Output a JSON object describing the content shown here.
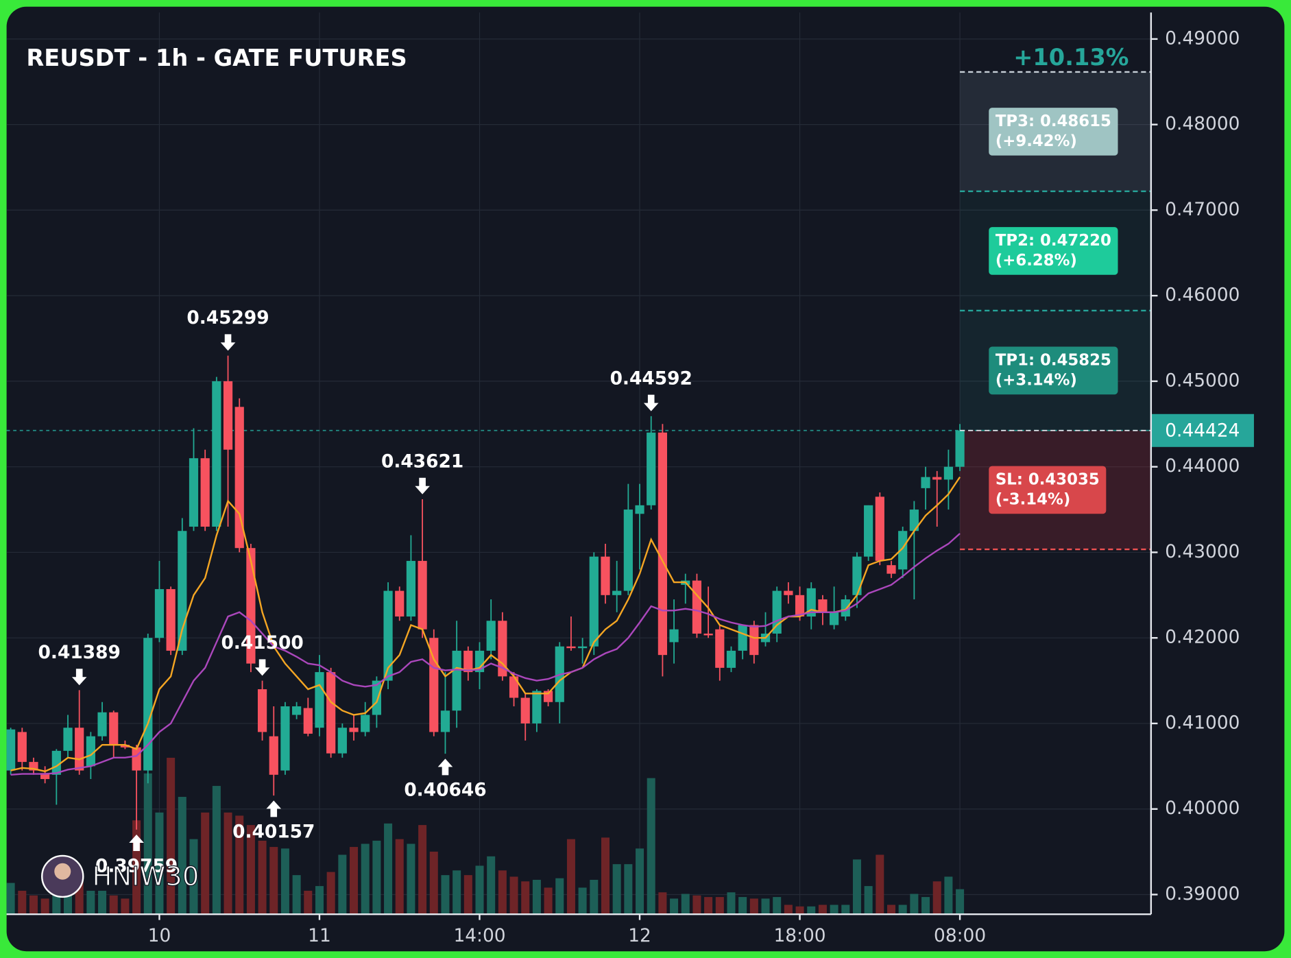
{
  "chart_data": {
    "type": "candlestick",
    "title": "REUSDT - 1h - GATE FUTURES",
    "watermark": "HNIW30",
    "categories": [
      null,
      null,
      null,
      null,
      null,
      null,
      null,
      null,
      null,
      null,
      null,
      null,
      null,
      "10",
      null,
      null,
      null,
      null,
      null,
      null,
      null,
      null,
      null,
      null,
      null,
      null,
      null,
      "11",
      null,
      null,
      null,
      null,
      null,
      null,
      null,
      null,
      null,
      null,
      null,
      null,
      null,
      "14:00",
      null,
      null,
      null,
      null,
      null,
      null,
      null,
      null,
      null,
      null,
      null,
      null,
      null,
      "12",
      null,
      null,
      null,
      null,
      null,
      null,
      null,
      null,
      null,
      null,
      null,
      null,
      null,
      "18:00",
      null,
      null,
      null,
      null,
      null,
      null,
      null,
      null,
      null,
      null,
      null,
      null,
      null,
      "08:00"
    ],
    "open": [
      0.4045,
      0.409,
      0.4055,
      0.4042,
      0.404,
      0.4068,
      0.4095,
      0.405,
      0.4085,
      0.4113,
      0.4075,
      0.4072,
      0.4045,
      0.42,
      0.4257,
      0.4185,
      0.433,
      0.441,
      0.433,
      0.45,
      0.447,
      0.4305,
      0.414,
      0.4085,
      0.4045,
      0.411,
      0.4118,
      0.4095,
      0.416,
      0.4065,
      0.4095,
      0.409,
      0.411,
      0.415,
      0.4255,
      0.4225,
      0.429,
      0.42,
      0.409,
      0.4115,
      0.4185,
      0.416,
      0.4185,
      0.422,
      0.4155,
      0.413,
      0.41,
      0.4138,
      0.4125,
      0.419,
      0.4188,
      0.419,
      0.4295,
      0.425,
      0.4255,
      0.4345,
      0.4355,
      0.444,
      0.4195,
      0.4262,
      0.4267,
      0.4205,
      0.421,
      0.4165,
      0.4185,
      0.4215,
      0.4195,
      0.4205,
      0.4255,
      0.425,
      0.4225,
      0.4245,
      0.4215,
      0.4225,
      0.425,
      0.4295,
      0.4365,
      0.4285,
      0.428,
      0.4325,
      0.4375,
      0.4388,
      0.4385,
      0.44
    ],
    "high": [
      0.4095,
      0.4095,
      0.406,
      0.405,
      0.407,
      0.411,
      0.41389,
      0.409,
      0.4125,
      0.4115,
      0.408,
      0.4075,
      0.4205,
      0.429,
      0.426,
      0.434,
      0.4445,
      0.442,
      0.4505,
      0.45299,
      0.448,
      0.431,
      0.415,
      0.412,
      0.4125,
      0.4125,
      0.413,
      0.418,
      0.4165,
      0.41,
      0.411,
      0.4125,
      0.4155,
      0.4265,
      0.426,
      0.432,
      0.43621,
      0.421,
      0.416,
      0.422,
      0.419,
      0.4195,
      0.4245,
      0.423,
      0.416,
      0.4135,
      0.414,
      0.414,
      0.4195,
      0.4225,
      0.42,
      0.43,
      0.431,
      0.429,
      0.438,
      0.438,
      0.44592,
      0.445,
      0.4245,
      0.4275,
      0.4275,
      0.426,
      0.4215,
      0.419,
      0.4215,
      0.422,
      0.423,
      0.426,
      0.4265,
      0.426,
      0.4265,
      0.425,
      0.426,
      0.425,
      0.43,
      0.4355,
      0.437,
      0.429,
      0.433,
      0.436,
      0.44,
      0.4395,
      0.442,
      0.445
    ],
    "low": [
      0.404,
      0.4045,
      0.404,
      0.403,
      0.4005,
      0.406,
      0.404,
      0.4035,
      0.408,
      0.406,
      0.407,
      0.39759,
      0.403,
      0.4195,
      0.418,
      0.418,
      0.4325,
      0.4325,
      0.4325,
      0.433,
      0.43,
      0.416,
      0.408,
      0.40157,
      0.404,
      0.4105,
      0.4085,
      0.4085,
      0.406,
      0.406,
      0.408,
      0.4085,
      0.4095,
      0.414,
      0.422,
      0.422,
      0.42,
      0.4085,
      0.40646,
      0.4095,
      0.415,
      0.414,
      0.4175,
      0.415,
      0.412,
      0.408,
      0.409,
      0.412,
      0.41,
      0.4185,
      0.417,
      0.418,
      0.424,
      0.423,
      0.425,
      0.428,
      0.435,
      0.4155,
      0.417,
      0.424,
      0.42,
      0.42,
      0.415,
      0.416,
      0.4175,
      0.417,
      0.419,
      0.4195,
      0.424,
      0.422,
      0.421,
      0.4215,
      0.421,
      0.422,
      0.4235,
      0.429,
      0.4285,
      0.427,
      0.427,
      0.4245,
      0.435,
      0.433,
      0.435,
      0.4395
    ],
    "close": [
      0.4093,
      0.4055,
      0.4045,
      0.4035,
      0.4068,
      0.4095,
      0.4045,
      0.4085,
      0.4113,
      0.4075,
      0.4072,
      0.4045,
      0.42,
      0.4257,
      0.4185,
      0.4325,
      0.441,
      0.433,
      0.45,
      0.442,
      0.4305,
      0.417,
      0.409,
      0.404,
      0.412,
      0.412,
      0.4088,
      0.416,
      0.4065,
      0.4095,
      0.409,
      0.411,
      0.415,
      0.4255,
      0.4225,
      0.429,
      0.421,
      0.409,
      0.4115,
      0.4185,
      0.416,
      0.4185,
      0.422,
      0.4155,
      0.413,
      0.41,
      0.4138,
      0.4125,
      0.419,
      0.4188,
      0.419,
      0.4295,
      0.425,
      0.4255,
      0.435,
      0.4355,
      0.444,
      0.418,
      0.421,
      0.4267,
      0.4205,
      0.4203,
      0.4165,
      0.4185,
      0.4215,
      0.418,
      0.4205,
      0.4255,
      0.425,
      0.4225,
      0.4258,
      0.423,
      0.423,
      0.4245,
      0.4295,
      0.4355,
      0.429,
      0.4275,
      0.4325,
      0.435,
      0.4388,
      0.4385,
      0.44,
      0.44424
    ],
    "up_color": "#22ab94",
    "down_color": "#f7525f",
    "volume": [
      20,
      15,
      12,
      10,
      12,
      20,
      25,
      15,
      15,
      12,
      10,
      60,
      90,
      65,
      100,
      75,
      48,
      65,
      82,
      65,
      63,
      57,
      47,
      43,
      42,
      25,
      15,
      18,
      27,
      38,
      43,
      45,
      47,
      58,
      48,
      45,
      57,
      40,
      25,
      28,
      25,
      31,
      37,
      28,
      24,
      21,
      22,
      17,
      23,
      48,
      17,
      22,
      49,
      32,
      32,
      42,
      87,
      14,
      10,
      13,
      12,
      11,
      11,
      14,
      11,
      10,
      10,
      11,
      6,
      5,
      5,
      6,
      6,
      6,
      35,
      18,
      38,
      6,
      6,
      13,
      11,
      21,
      24,
      16
    ],
    "vlim": [
      0,
      100
    ],
    "volume_up_color": "#1d5f57",
    "volume_down_color": "#6e2427",
    "ma": [
      {
        "color": "#f5a623",
        "values": [
          0.4045,
          0.4048,
          0.4047,
          0.4044,
          0.405,
          0.406,
          0.4058,
          0.4063,
          0.4075,
          0.4075,
          0.4075,
          0.407,
          0.41,
          0.414,
          0.4155,
          0.421,
          0.425,
          0.427,
          0.432,
          0.436,
          0.4345,
          0.429,
          0.423,
          0.419,
          0.417,
          0.4155,
          0.414,
          0.4145,
          0.4125,
          0.4115,
          0.411,
          0.4112,
          0.4125,
          0.4165,
          0.418,
          0.4215,
          0.421,
          0.4175,
          0.4155,
          0.4165,
          0.4162,
          0.4165,
          0.418,
          0.417,
          0.4155,
          0.4135,
          0.4135,
          0.4135,
          0.415,
          0.416,
          0.4165,
          0.4195,
          0.421,
          0.422,
          0.4245,
          0.4275,
          0.4315,
          0.429,
          0.4265,
          0.4265,
          0.425,
          0.4235,
          0.4215,
          0.421,
          0.4205,
          0.42,
          0.42,
          0.4215,
          0.4225,
          0.4225,
          0.4233,
          0.423,
          0.423,
          0.4233,
          0.425,
          0.4285,
          0.429,
          0.4292,
          0.4305,
          0.4325,
          0.4343,
          0.4355,
          0.4368,
          0.4388
        ]
      },
      {
        "color": "#ab47bc",
        "values": [
          0.404,
          0.4041,
          0.4041,
          0.4041,
          0.4042,
          0.4046,
          0.4048,
          0.405,
          0.4055,
          0.406,
          0.406,
          0.4062,
          0.4075,
          0.409,
          0.41,
          0.4125,
          0.415,
          0.4165,
          0.4195,
          0.4225,
          0.423,
          0.422,
          0.4205,
          0.419,
          0.4185,
          0.4178,
          0.417,
          0.4168,
          0.416,
          0.415,
          0.4145,
          0.4143,
          0.4145,
          0.4155,
          0.416,
          0.4172,
          0.4175,
          0.4165,
          0.4162,
          0.4163,
          0.4162,
          0.4163,
          0.417,
          0.4165,
          0.4158,
          0.4153,
          0.415,
          0.4152,
          0.4157,
          0.416,
          0.4165,
          0.4175,
          0.4182,
          0.4187,
          0.42,
          0.4218,
          0.4237,
          0.4232,
          0.4232,
          0.4234,
          0.4232,
          0.4228,
          0.4222,
          0.4218,
          0.4215,
          0.4213,
          0.4214,
          0.422,
          0.4225,
          0.4227,
          0.423,
          0.423,
          0.423,
          0.4232,
          0.424,
          0.4252,
          0.4257,
          0.4262,
          0.4272,
          0.4283,
          0.4293,
          0.4302,
          0.431,
          0.4322
        ]
      }
    ],
    "ylim": [
      0.3877,
      0.4931
    ],
    "yticks": [
      {
        "value": 0.39,
        "label": "0.39000"
      },
      {
        "value": 0.4,
        "label": "0.40000"
      },
      {
        "value": 0.41,
        "label": "0.41000"
      },
      {
        "value": 0.42,
        "label": "0.42000"
      },
      {
        "value": 0.43,
        "label": "0.43000"
      },
      {
        "value": 0.44,
        "label": "0.44000"
      },
      {
        "value": 0.45,
        "label": "0.45000"
      },
      {
        "value": 0.46,
        "label": "0.46000"
      },
      {
        "value": 0.47,
        "label": "0.47000"
      },
      {
        "value": 0.48,
        "label": "0.48000"
      },
      {
        "value": 0.49,
        "label": "0.49000"
      }
    ],
    "grid": true,
    "annotations": [
      {
        "value": 0.41389,
        "label": "0.41389"
      },
      {
        "value": 0.39759,
        "label": "0.39759"
      },
      {
        "value": 0.45299,
        "label": "0.45299"
      },
      {
        "value": 0.40157,
        "label": "0.40157"
      },
      {
        "value": 0.43621,
        "label": "0.43621"
      },
      {
        "value": 0.40646,
        "label": "0.40646"
      },
      {
        "value": 0.44592,
        "label": "0.44592"
      },
      {
        "value": 0.415,
        "label": "0.41500"
      }
    ],
    "entry": 0.44424,
    "entry_color": "#26a69a",
    "top_label": "+10.13%",
    "targets": [
      {
        "label": "TP1: 0.45825",
        "change": "(+3.14%)",
        "value": 0.45825,
        "color": "#1e8c7c",
        "zone_color": "rgba(38,166,154,0.10)",
        "line_color": "#26a69a"
      },
      {
        "label": "TP2: 0.47220",
        "change": "(+6.28%)",
        "value": 0.4722,
        "color": "#1ecb9b",
        "zone_color": "rgba(38,166,154,0.07)",
        "line_color": "#26a69a"
      },
      {
        "label": "TP3: 0.48615",
        "change": "(+9.42%)",
        "value": 0.48615,
        "color": "#9fc4c3",
        "zone_color": "rgba(130,150,170,0.16)",
        "line_color": "#c8d0d8"
      },
      {
        "label": "SL: 0.43035",
        "change": "(-3.14%)",
        "value": 0.43035,
        "color": "#d8474b",
        "zone_color": "rgba(242,54,69,0.17)",
        "line_color": "#f05252"
      }
    ]
  }
}
